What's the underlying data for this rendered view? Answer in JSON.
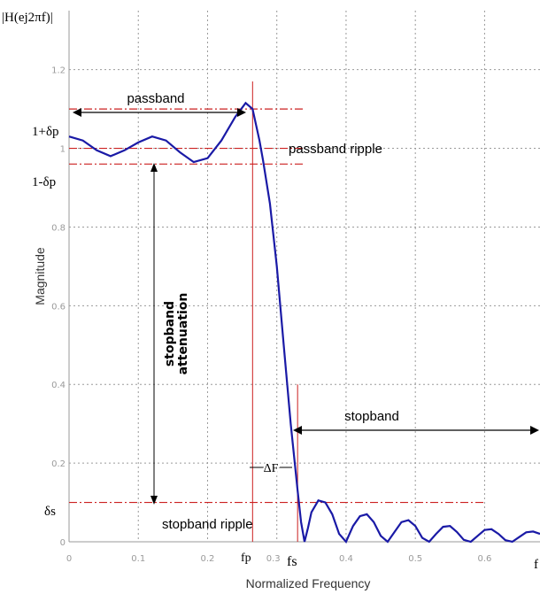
{
  "chart_data": {
    "type": "line",
    "title": "",
    "ylabel_top": "|H(ej2πf)|",
    "ylabel": "Magnitude",
    "xlabel": "Normalized Frequency",
    "x_axis_end_label": "f",
    "xlim": [
      0,
      0.68
    ],
    "ylim": [
      0,
      1.35
    ],
    "x_ticks": [
      0,
      0.1,
      0.2,
      0.3,
      0.4,
      0.5,
      0.6
    ],
    "x_tick_labels": [
      "0",
      "0.1",
      "0.2",
      "",
      "0.4",
      "0.5",
      "0.6"
    ],
    "extra_x_ticks": [
      {
        "x": 0.3,
        "label": "0.3"
      }
    ],
    "y_ticks": [
      0,
      0.2,
      0.4,
      0.6,
      0.8,
      1.0,
      1.2
    ],
    "y_tick_labels": [
      "0",
      "0.2",
      "0.4",
      "0.6",
      "0.8",
      "1",
      "1.2"
    ],
    "grid": true,
    "series": [
      {
        "name": "",
        "color": "#1a1aa6",
        "x": [
          0,
          0.02,
          0.04,
          0.06,
          0.08,
          0.1,
          0.12,
          0.14,
          0.16,
          0.18,
          0.2,
          0.22,
          0.24,
          0.255,
          0.265,
          0.275,
          0.28,
          0.29,
          0.3,
          0.31,
          0.32,
          0.33,
          0.335,
          0.34,
          0.345,
          0.35,
          0.36,
          0.37,
          0.38,
          0.39,
          0.4,
          0.41,
          0.42,
          0.43,
          0.44,
          0.45,
          0.46,
          0.47,
          0.48,
          0.49,
          0.5,
          0.51,
          0.52,
          0.53,
          0.54,
          0.55,
          0.56,
          0.57,
          0.58,
          0.59,
          0.6,
          0.61,
          0.62,
          0.63,
          0.64,
          0.65,
          0.66,
          0.67,
          0.68
        ],
        "y": [
          1.03,
          1.02,
          0.995,
          0.98,
          0.995,
          1.015,
          1.03,
          1.02,
          0.99,
          0.965,
          0.975,
          1.02,
          1.08,
          1.115,
          1.1,
          1.02,
          0.97,
          0.86,
          0.7,
          0.5,
          0.3,
          0.13,
          0.05,
          0.0,
          0.035,
          0.075,
          0.105,
          0.1,
          0.07,
          0.02,
          0.0,
          0.04,
          0.065,
          0.07,
          0.05,
          0.015,
          0.0,
          0.025,
          0.05,
          0.055,
          0.04,
          0.01,
          0.0,
          0.02,
          0.038,
          0.04,
          0.025,
          0.005,
          0.0,
          0.015,
          0.03,
          0.032,
          0.02,
          0.004,
          0.0,
          0.012,
          0.024,
          0.026,
          0.02
        ]
      }
    ],
    "reference_lines": [
      {
        "type": "h",
        "y": 1.1,
        "x_from": 0.0,
        "x_to": 0.34,
        "style": "dashdot",
        "label": "1+δp"
      },
      {
        "type": "h",
        "y": 1.0,
        "x_from": 0.0,
        "x_to": 0.34,
        "style": "dashdot",
        "label": ""
      },
      {
        "type": "h",
        "y": 0.96,
        "x_from": 0.0,
        "x_to": 0.34,
        "style": "dashdot",
        "label": "1-δp"
      },
      {
        "type": "h",
        "y": 0.1,
        "x_from": 0.0,
        "x_to": 0.6,
        "style": "dashdot",
        "label": "δs"
      },
      {
        "type": "v",
        "x": 0.265,
        "y_from": 0,
        "y_to": 1.17
      },
      {
        "type": "v",
        "x": 0.33,
        "y_from": 0,
        "y_to": 0.4
      }
    ],
    "annotations": {
      "passband": "passband",
      "passband_ripple": "passband ripple",
      "stopband_attenuation_line1": "stopband",
      "stopband_attenuation_line2": "attenuation",
      "stopband": "stopband",
      "stopband_ripple": "stopband ripple",
      "delta_f": "ΔF",
      "fp": "fp",
      "fs": "fs"
    },
    "colors": {
      "curve": "#1a1aa6",
      "reference": "#cc2020",
      "grid": "#9a9a9a",
      "axis": "#9a9a9a"
    }
  }
}
